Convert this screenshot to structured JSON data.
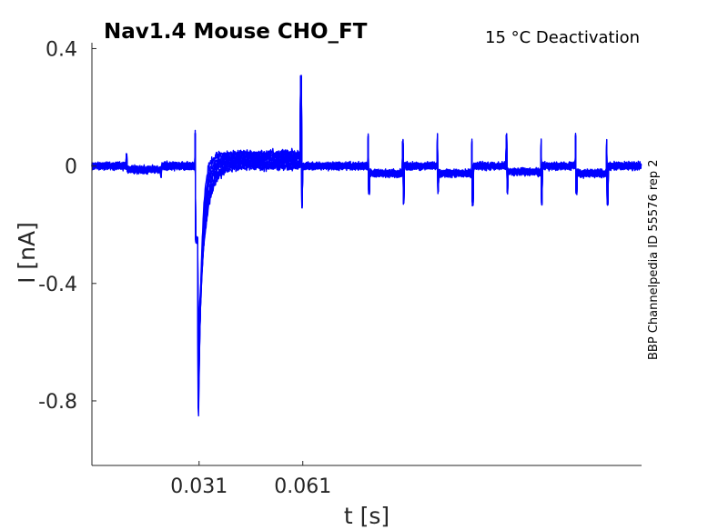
{
  "chart_data": {
    "type": "line",
    "title": "Nav1.4  Mouse  CHO_FT",
    "condition": "15 °C  Deactivation",
    "side_label": "BBP Channelpedia ID 55576 rep 2",
    "xlabel": "t [s]",
    "ylabel": "I [nA]",
    "xlim": [
      0.0,
      0.159
    ],
    "ylim": [
      -1.02,
      0.42
    ],
    "x_ticks": [
      0.031,
      0.061
    ],
    "x_tick_labels": [
      "0.031",
      "0.061"
    ],
    "y_ticks": [
      0.4,
      0,
      -0.4,
      -0.8
    ],
    "y_tick_labels": [
      "0.4",
      "0",
      "-0.4",
      "-0.8"
    ],
    "grid": false,
    "line_color": "#0000ff",
    "protocol": {
      "pre_pulse_start": 0.01,
      "pre_pulse_end": 0.02,
      "pre_pulse_level": -0.012,
      "activation_step": 0.0298,
      "activation_transient": 0.11,
      "peak_time": 0.0308,
      "peak_current_range": [
        -0.9,
        -0.56
      ],
      "deactivation_step": 0.0605,
      "deactivation_spike": 0.3,
      "deactivation_spike_neg": -0.13,
      "late_pulses": [
        {
          "start": 0.08,
          "end": 0.09,
          "level": -0.025
        },
        {
          "start": 0.1,
          "end": 0.11,
          "level": -0.025
        },
        {
          "start": 0.12,
          "end": 0.13,
          "level": -0.02
        },
        {
          "start": 0.14,
          "end": 0.149,
          "level": -0.025
        }
      ],
      "late_transient_up": 0.1,
      "late_transient_down": -0.12,
      "sweep_count": 10
    }
  }
}
